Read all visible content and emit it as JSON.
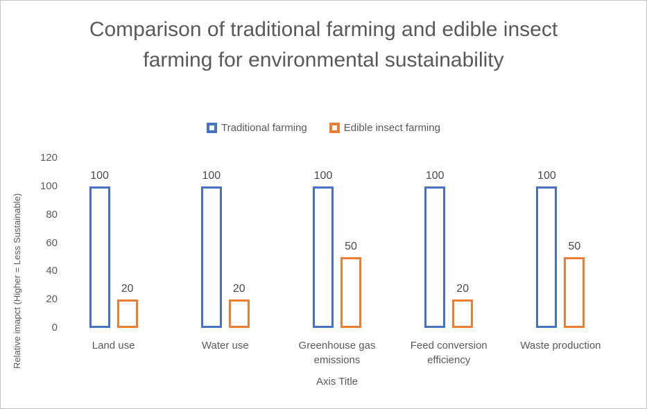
{
  "chart_data": {
    "type": "bar",
    "title": "Comparison of traditional farming and edible insect farming for environmental sustainability",
    "categories": [
      "Land use",
      "Water use",
      "Greenhouse gas emissions",
      "Feed conversion efficiency",
      "Waste production"
    ],
    "series": [
      {
        "name": "Traditional farming",
        "color": "#4472C4",
        "values": [
          100,
          100,
          100,
          100,
          100
        ]
      },
      {
        "name": "Edible insect farming",
        "color": "#ED7D31",
        "values": [
          20,
          20,
          50,
          20,
          50
        ]
      }
    ],
    "xlabel": "Axis Title",
    "ylabel": "Relative imapct (Higher = Less Sustainable)",
    "ylim": [
      0,
      120
    ],
    "yticks": [
      0,
      20,
      40,
      60,
      80,
      100,
      120
    ],
    "grid": false,
    "axis_lines": false,
    "bar_style": "hollow",
    "data_labels": true,
    "legend_position": "top",
    "colors": {
      "title_text": "#595959",
      "axis_text": "#595959",
      "data_label_text": "#4a4a4a",
      "background": "#ffffff",
      "frame_border": "#c3c3c3"
    }
  }
}
